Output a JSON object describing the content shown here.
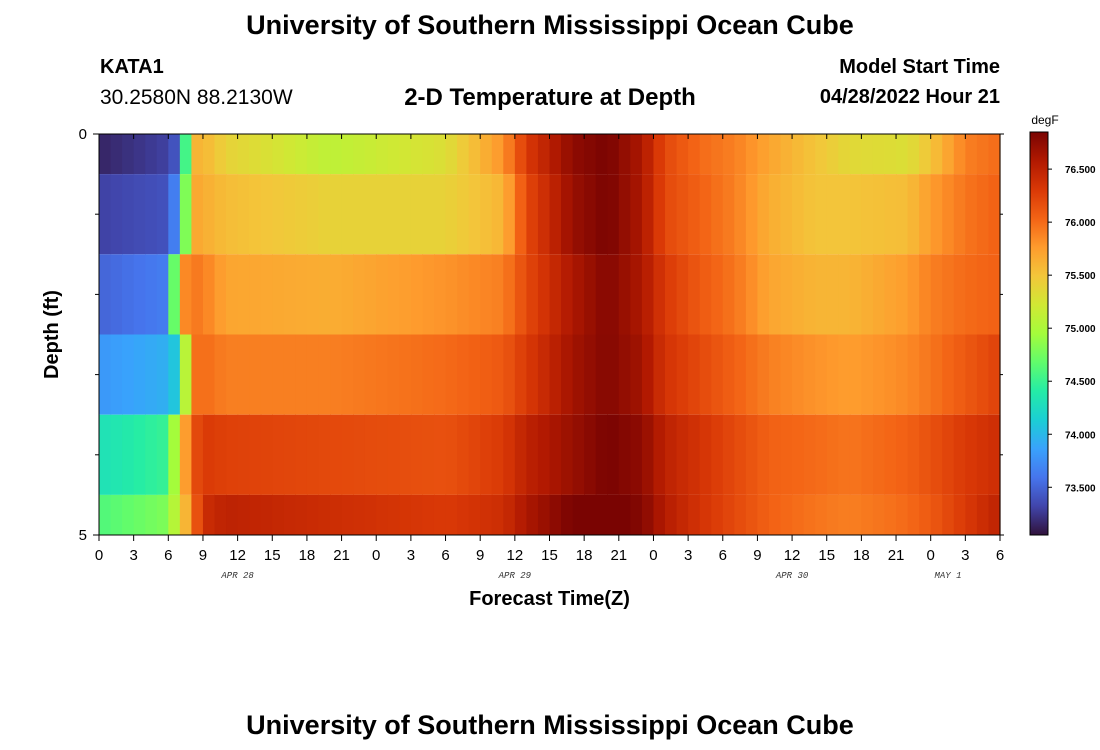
{
  "page": {
    "title": "University of Southern Mississippi Ocean Cube",
    "footer_title": "University of Southern Mississippi Ocean Cube",
    "station_id": "KATA1",
    "coordinates": "30.2580N  88.2130W",
    "subtitle": "2-D Temperature at Depth",
    "model_start_label": "Model Start Time",
    "model_start_value": "04/28/2022 Hour 21"
  },
  "chart_data": {
    "type": "heatmap",
    "title": "2-D Temperature at Depth",
    "xlabel": "Forecast Time(Z)",
    "ylabel": "Depth (ft)",
    "colorbar_unit": "degF",
    "x_ticks": [
      "0",
      "3",
      "6",
      "9",
      "12",
      "15",
      "18",
      "21",
      "0",
      "3",
      "6",
      "9",
      "12",
      "15",
      "18",
      "21",
      "0",
      "3",
      "6",
      "9",
      "12",
      "15",
      "18",
      "21",
      "0",
      "3",
      "6"
    ],
    "day_labels": [
      {
        "label": "APR 28",
        "at_tick": 4
      },
      {
        "label": "APR 29",
        "at_tick": 12
      },
      {
        "label": "APR 30",
        "at_tick": 20
      },
      {
        "label": "MAY 1",
        "at_tick": 24.5
      }
    ],
    "y_tick_labels": [
      {
        "depth": 0,
        "label": "0"
      },
      {
        "depth": 5,
        "label": "5"
      }
    ],
    "y_minor_ticks": [
      1,
      2,
      3,
      4
    ],
    "ylim": [
      0,
      5
    ],
    "xlim": [
      0,
      78
    ],
    "clim": [
      73.05,
      76.85
    ],
    "colorbar_ticks": [
      "73.500",
      "74.000",
      "74.500",
      "75.000",
      "75.500",
      "76.000",
      "76.500"
    ],
    "colorscale": [
      "#30123b",
      "#4145ab",
      "#4675ed",
      "#39a2fc",
      "#1bcfd4",
      "#24eca6",
      "#61fc6c",
      "#a4fc3b",
      "#d1e834",
      "#f3c63a",
      "#fe9b2d",
      "#f36315",
      "#d93806",
      "#b11901",
      "#7a0402"
    ],
    "depth_levels_ft": [
      0,
      1,
      2,
      3,
      4,
      5
    ],
    "time_anchors_hours": [
      0,
      6,
      7,
      8,
      9,
      11,
      20,
      30,
      35,
      37,
      41,
      44,
      47,
      49,
      52,
      55,
      58,
      62,
      65,
      70,
      72,
      75,
      78
    ],
    "temperature_degF": [
      [
        73.15,
        73.3,
        73.5,
        75.6,
        75.6,
        75.4,
        75.1,
        75.3,
        75.8,
        76.3,
        76.75,
        76.85,
        76.6,
        76.2,
        76.0,
        75.9,
        75.7,
        75.5,
        75.35,
        75.3,
        75.5,
        75.9,
        76.0
      ],
      [
        73.3,
        73.4,
        73.9,
        75.7,
        75.65,
        75.55,
        75.4,
        75.4,
        75.6,
        76.2,
        76.7,
        76.85,
        76.6,
        76.2,
        76.05,
        75.9,
        75.65,
        75.5,
        75.5,
        75.55,
        75.75,
        75.95,
        76.05
      ],
      [
        73.5,
        73.65,
        75.75,
        75.95,
        75.9,
        75.7,
        75.65,
        75.8,
        75.9,
        76.2,
        76.6,
        76.8,
        76.6,
        76.3,
        76.1,
        75.95,
        75.7,
        75.6,
        75.6,
        75.75,
        75.9,
        76.0,
        76.05
      ],
      [
        73.8,
        73.95,
        74.2,
        75.95,
        76.0,
        75.9,
        75.9,
        76.0,
        76.1,
        76.3,
        76.65,
        76.8,
        76.65,
        76.35,
        76.2,
        76.05,
        75.9,
        75.8,
        75.75,
        75.85,
        75.95,
        76.1,
        76.25
      ],
      [
        74.3,
        74.5,
        75.4,
        76.1,
        76.3,
        76.25,
        76.2,
        76.15,
        76.3,
        76.5,
        76.7,
        76.85,
        76.75,
        76.5,
        76.35,
        76.2,
        76.05,
        76.0,
        75.95,
        76.05,
        76.15,
        76.3,
        76.4
      ],
      [
        74.6,
        74.8,
        75.3,
        75.9,
        76.4,
        76.5,
        76.4,
        76.3,
        76.4,
        76.6,
        76.85,
        76.9,
        76.8,
        76.55,
        76.35,
        76.2,
        76.05,
        75.95,
        75.9,
        76.0,
        76.1,
        76.3,
        76.5
      ]
    ]
  }
}
